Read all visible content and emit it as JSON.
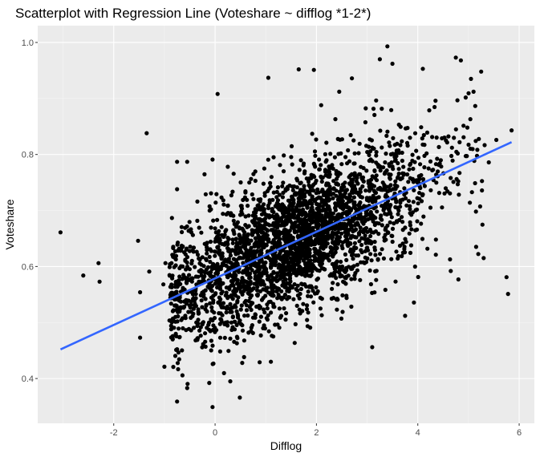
{
  "chart_data": {
    "type": "scatter",
    "title": "Scatterplot with Regression Line (Voteshare ~ difflog *1-2*)",
    "xlabel": "Difflog",
    "ylabel": "Voteshare",
    "xlim": [
      -3.5,
      6.3
    ],
    "ylim": [
      0.32,
      1.03
    ],
    "x_ticks": [
      -2,
      0,
      2,
      4,
      6
    ],
    "x_tick_labels": [
      "-2",
      "0",
      "2",
      "4",
      "6"
    ],
    "y_ticks": [
      0.4,
      0.6,
      0.8,
      1.0
    ],
    "y_tick_labels": [
      "0.4",
      "0.6",
      "0.8",
      "1.0"
    ],
    "grid": true,
    "legend": "none",
    "colors": {
      "panel": "#ebebeb",
      "grid_major": "#ffffff",
      "point": "#000000",
      "line": "#3366ff"
    },
    "regression_line": {
      "x": [
        -3.05,
        5.85
      ],
      "y": [
        0.452,
        0.822
      ]
    },
    "point_count_approx": 3000,
    "points": [
      [
        -3.05,
        0.661
      ],
      [
        -2.6,
        0.584
      ],
      [
        -2.3,
        0.606
      ],
      [
        -2.28,
        0.573
      ],
      [
        -1.52,
        0.646
      ],
      [
        -1.48,
        0.554
      ],
      [
        -1.48,
        0.473
      ],
      [
        -1.35,
        0.838
      ],
      [
        -1.3,
        0.591
      ],
      [
        -1.02,
        0.568
      ],
      [
        -1.0,
        0.421
      ],
      [
        -0.98,
        0.606
      ],
      [
        -0.75,
        0.787
      ],
      [
        -0.75,
        0.359
      ],
      [
        -0.75,
        0.738
      ],
      [
        -0.55,
        0.383
      ],
      [
        -0.55,
        0.787
      ],
      [
        -0.35,
        0.716
      ],
      [
        -0.05,
        0.791
      ],
      [
        -0.05,
        0.349
      ],
      [
        0.05,
        0.908
      ],
      [
        0.25,
        0.778
      ],
      [
        0.3,
        0.395
      ],
      [
        1.05,
        0.937
      ],
      [
        1.1,
        0.43
      ],
      [
        1.65,
        0.952
      ],
      [
        1.95,
        0.951
      ],
      [
        2.45,
        0.912
      ],
      [
        2.7,
        0.936
      ],
      [
        3.1,
        0.456
      ],
      [
        3.25,
        0.97
      ],
      [
        3.4,
        0.993
      ],
      [
        3.5,
        0.962
      ],
      [
        3.75,
        0.512
      ],
      [
        4.1,
        0.953
      ],
      [
        4.35,
        0.896
      ],
      [
        4.75,
        0.973
      ],
      [
        4.85,
        0.968
      ],
      [
        4.8,
        0.577
      ],
      [
        4.65,
        0.592
      ],
      [
        5.05,
        0.935
      ],
      [
        5.1,
        0.912
      ],
      [
        5.15,
        0.635
      ],
      [
        5.25,
        0.948
      ],
      [
        5.3,
        0.615
      ],
      [
        5.75,
        0.581
      ],
      [
        5.78,
        0.551
      ],
      [
        5.85,
        0.843
      ],
      [
        5.55,
        0.826
      ],
      [
        5.4,
        0.786
      ]
    ]
  }
}
